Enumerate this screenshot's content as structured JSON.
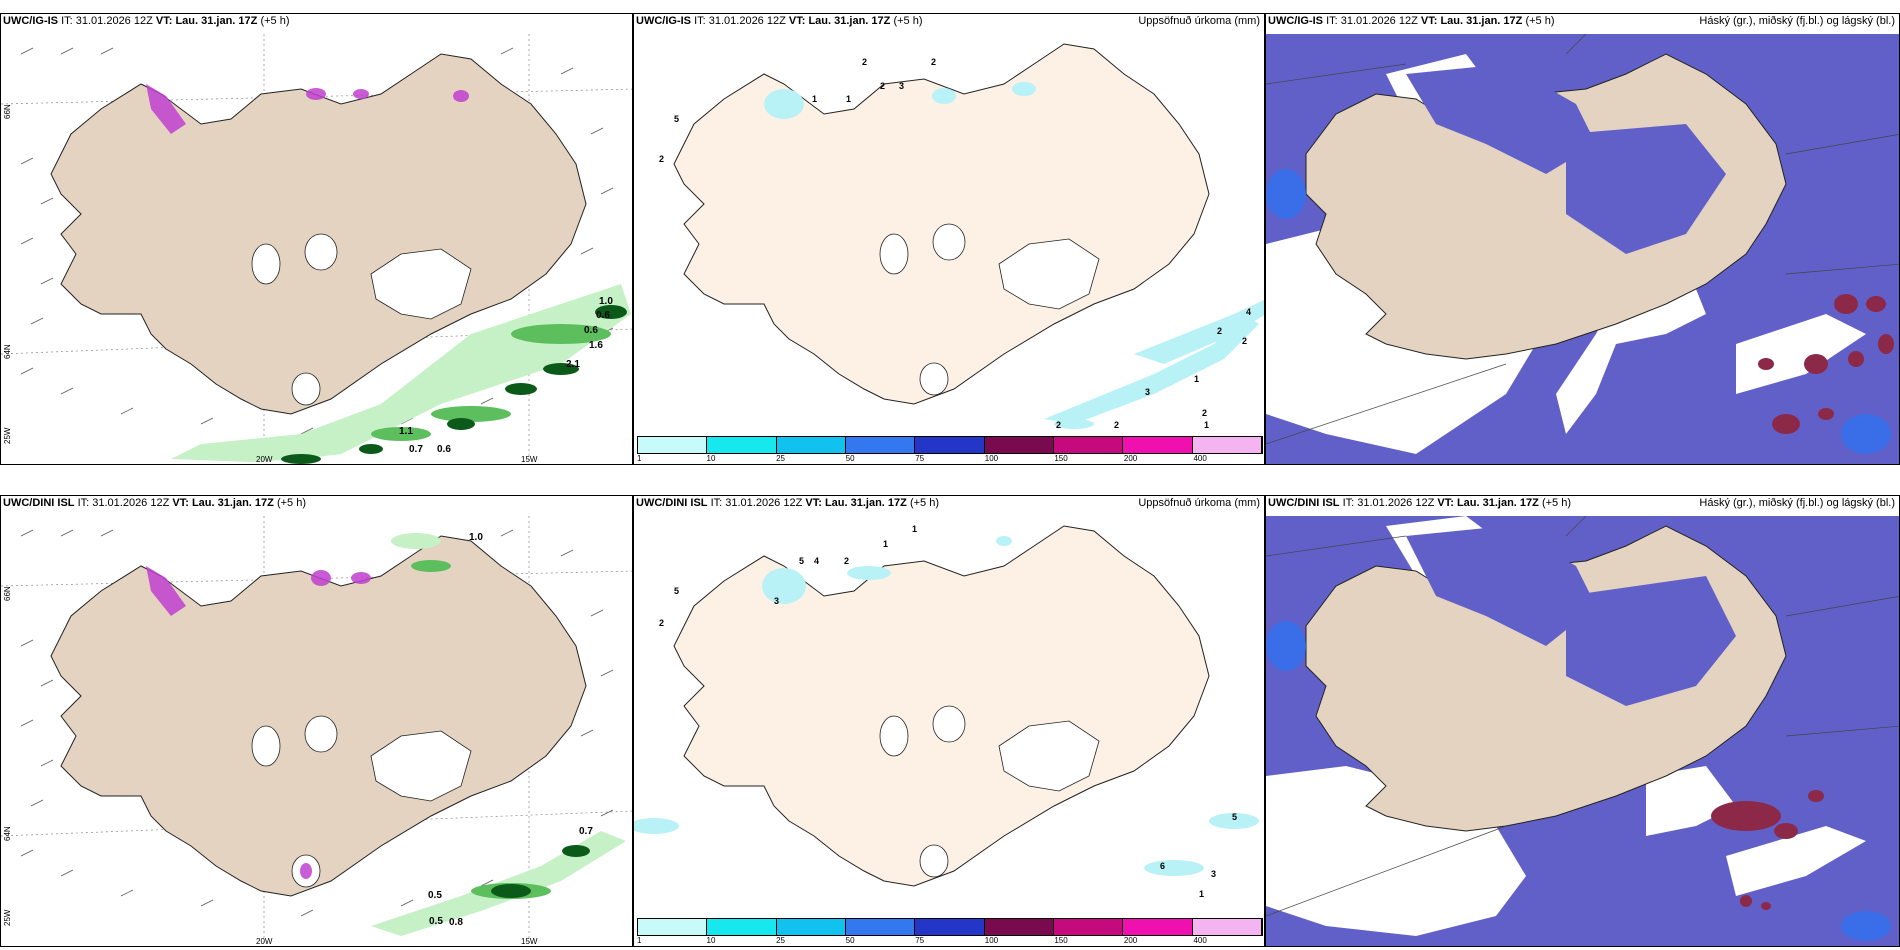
{
  "colors": {
    "land_wind": "#e3d3c0",
    "land_precip": "#fdf0e4",
    "ocean_cloud_high": "#6160c8",
    "cloud_mid": "#3a6ee8",
    "cloud_light": "#9fd8f2",
    "convective": "#8c2948",
    "precip_light": "#b8f2f6",
    "green_light": "#c6f0c6",
    "green_mid": "#5dbe5d",
    "green_dark": "#0c5a1a",
    "purple": "#c040d0"
  },
  "panels": {
    "p11": {
      "model": "UWC/IG-IS",
      "it_label": "IT:",
      "it_value": "31.01.2026 12Z",
      "vt_label": "VT:",
      "vt_value": "Lau. 31.jan. 17Z",
      "lead": "(+5 h)"
    },
    "p12": {
      "model": "UWC/IG-IS",
      "it_label": "IT:",
      "it_value": "31.01.2026 12Z",
      "vt_label": "VT:",
      "vt_value": "Lau. 31.jan. 17Z",
      "lead": "(+5 h)",
      "title_right": "Uppsöfnuð úrkoma (mm)"
    },
    "p13": {
      "model": "UWC/IG-IS",
      "it_label": "IT:",
      "it_value": "31.01.2026 12Z",
      "vt_label": "VT:",
      "vt_value": "Lau. 31.jan. 17Z",
      "lead": "(+5 h)",
      "title_right": "Háský (gr.), miðský (fj.bl.) og lágský (bl.)"
    },
    "p21": {
      "model": "UWC/DINI ISL",
      "it_label": "IT:",
      "it_value": "31.01.2026 12Z",
      "vt_label": "VT:",
      "vt_value": "Lau. 31.jan. 17Z",
      "lead": "(+5 h)"
    },
    "p22": {
      "model": "UWC/DINI ISL",
      "it_label": "IT:",
      "it_value": "31.01.2026 12Z",
      "vt_label": "VT:",
      "vt_value": "Lau. 31.jan. 17Z",
      "lead": "(+5 h)",
      "title_right": "Uppsöfnuð úrkoma (mm)"
    },
    "p23": {
      "model": "UWC/DINI ISL",
      "it_label": "IT:",
      "it_value": "31.01.2026 12Z",
      "vt_label": "VT:",
      "vt_value": "Lau. 31.jan. 17Z",
      "lead": "(+5 h)",
      "title_right": "Háský (gr.), miðský (fj.bl.) og lágský (bl.)"
    }
  },
  "axes": {
    "lat66": "66N",
    "lat64": "64N",
    "lon20": "20W",
    "lon15": "15W",
    "lon25": "25W"
  },
  "legend": {
    "ticks": [
      "1",
      "10",
      "25",
      "50",
      "75",
      "100",
      "150",
      "200",
      "400"
    ],
    "colors": [
      "#c8fafa",
      "#16e8ee",
      "#12c2ee",
      "#3478f0",
      "#2436c8",
      "#7a0a4e",
      "#c40a7c",
      "#f010b0",
      "#f4b4f0"
    ]
  },
  "labels": {
    "p11": [
      "1.0",
      "0.6",
      "0.6",
      "1.6",
      "2.1",
      "1.1",
      "0.7",
      "0.6"
    ],
    "p21": [
      "1.0",
      "0.7",
      "0.5",
      "0.5",
      "0.8"
    ],
    "p12": [
      "2",
      "2",
      "2",
      "3",
      "1",
      "1",
      "2",
      "4",
      "2",
      "2",
      "3",
      "1",
      "2",
      "2",
      "1",
      "2",
      "5"
    ],
    "p22": [
      "1",
      "1",
      "2",
      "4",
      "5",
      "3",
      "2",
      "5",
      "6",
      "3",
      "1",
      "5"
    ]
  }
}
